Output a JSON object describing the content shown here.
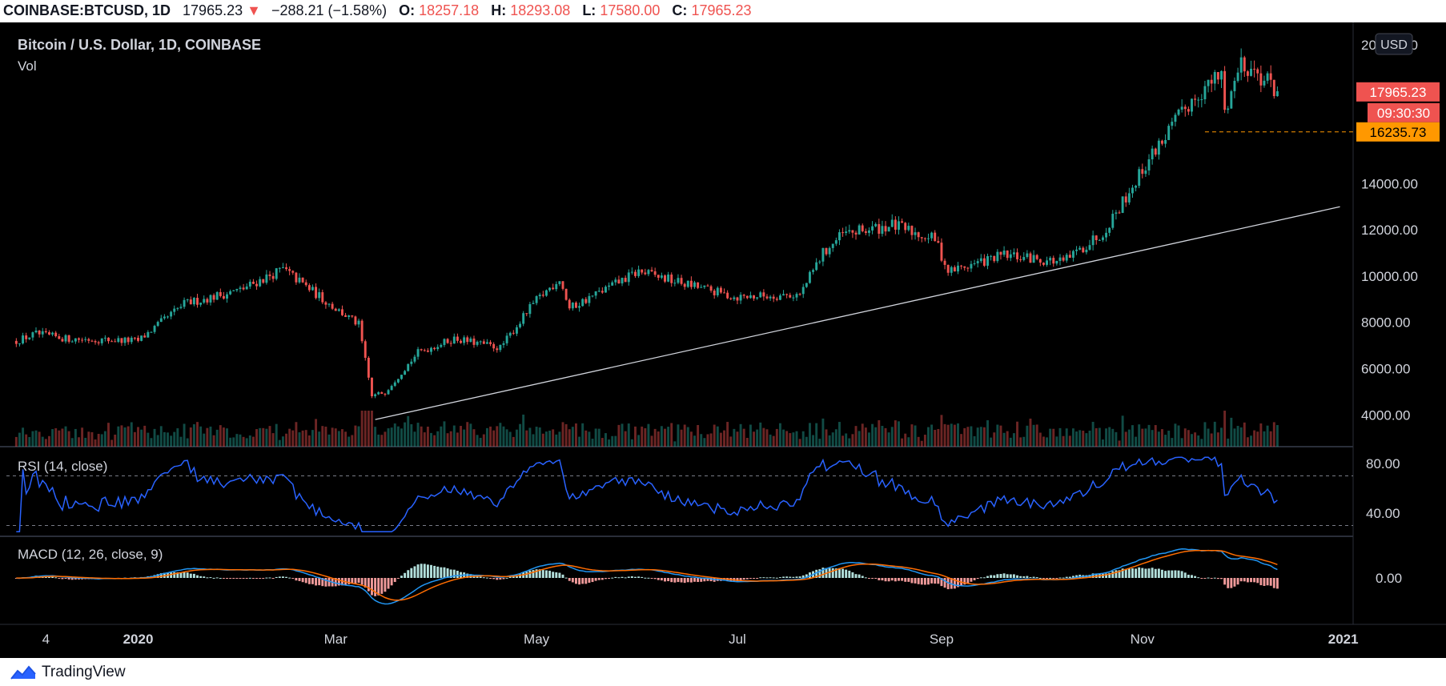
{
  "header": {
    "symbol": "COINBASE:BTCUSD, 1D",
    "last": "17965.23",
    "down_arrow": "▼",
    "change": "−288.21 (−1.58%)",
    "o_label": "O:",
    "o_value": "18257.18",
    "h_label": "H:",
    "h_value": "18293.08",
    "l_label": "L:",
    "l_value": "17580.00",
    "c_label": "C:",
    "c_value": "17965.23"
  },
  "legend": {
    "title": "Bitcoin / U.S. Dollar, 1D, COINBASE",
    "vol": "Vol",
    "rsi": "RSI (14, close)",
    "macd": "MACD (12, 26, close, 9)"
  },
  "scale": {
    "currency": "USD",
    "price_ticks": [
      "20000.00",
      "14000.00",
      "12000.00",
      "10000.00",
      "8000.00",
      "6000.00",
      "4000.00"
    ],
    "last_price_label": "17965.23",
    "countdown_label": "09:30:30",
    "level_label": "16235.73",
    "rsi_ticks": [
      "80.00",
      "40.00"
    ],
    "macd_ticks": [
      "0.00"
    ],
    "time_labels": [
      "4",
      "2020",
      "Mar",
      "May",
      "Jul",
      "Sep",
      "Nov",
      "2021"
    ]
  },
  "colors": {
    "up": "#26a69a",
    "down": "#ef5350",
    "level": "#ff9800",
    "rsi_line": "#2962ff",
    "macd_line": "#2196f3",
    "signal_line": "#ff6d00",
    "trendline": "#d1d4dc"
  },
  "footer": {
    "brand": "TradingView",
    "logo_icon": "tradingview-logo-icon"
  },
  "chart_data": {
    "type": "candlestick",
    "title": "Bitcoin / U.S. Dollar, 1D, COINBASE",
    "ylim": [
      3700,
      20500
    ],
    "price_path": [
      {
        "date": "2019-11-25",
        "close": 7200
      },
      {
        "date": "2019-12-01",
        "close": 7500
      },
      {
        "date": "2019-12-10",
        "close": 7300
      },
      {
        "date": "2020-01-01",
        "close": 7200
      },
      {
        "date": "2020-01-15",
        "close": 8800
      },
      {
        "date": "2020-02-01",
        "close": 9400
      },
      {
        "date": "2020-02-14",
        "close": 10300
      },
      {
        "date": "2020-03-01",
        "close": 8600
      },
      {
        "date": "2020-03-08",
        "close": 7900
      },
      {
        "date": "2020-03-12",
        "close": 4800
      },
      {
        "date": "2020-03-16",
        "close": 5000
      },
      {
        "date": "2020-03-26",
        "close": 6700
      },
      {
        "date": "2020-04-06",
        "close": 7300
      },
      {
        "date": "2020-04-20",
        "close": 6900
      },
      {
        "date": "2020-04-30",
        "close": 8800
      },
      {
        "date": "2020-05-08",
        "close": 9900
      },
      {
        "date": "2020-05-11",
        "close": 8600
      },
      {
        "date": "2020-06-01",
        "close": 10200
      },
      {
        "date": "2020-06-30",
        "close": 9100
      },
      {
        "date": "2020-07-20",
        "close": 9200
      },
      {
        "date": "2020-07-27",
        "close": 11000
      },
      {
        "date": "2020-08-02",
        "close": 11800
      },
      {
        "date": "2020-08-17",
        "close": 12200
      },
      {
        "date": "2020-08-30",
        "close": 11600
      },
      {
        "date": "2020-09-03",
        "close": 10200
      },
      {
        "date": "2020-09-20",
        "close": 10900
      },
      {
        "date": "2020-10-08",
        "close": 10600
      },
      {
        "date": "2020-10-20",
        "close": 11900
      },
      {
        "date": "2020-10-25",
        "close": 13000
      },
      {
        "date": "2020-11-05",
        "close": 15500
      },
      {
        "date": "2020-11-17",
        "close": 17800
      },
      {
        "date": "2020-11-25",
        "close": 18700
      },
      {
        "date": "2020-11-26",
        "close": 17100
      },
      {
        "date": "2020-12-01",
        "close": 19300
      },
      {
        "date": "2020-12-10",
        "close": 18300
      },
      {
        "date": "2020-12-12",
        "close": 17965
      }
    ],
    "trendline": [
      {
        "date": "2020-03-13",
        "price": 3800
      },
      {
        "date": "2020-12-31",
        "price": 13000
      }
    ],
    "level": 16235.73,
    "rsi": {
      "ylim": [
        25,
        85
      ],
      "bands": [
        70,
        30
      ]
    },
    "macd": {
      "zero": 0
    }
  }
}
